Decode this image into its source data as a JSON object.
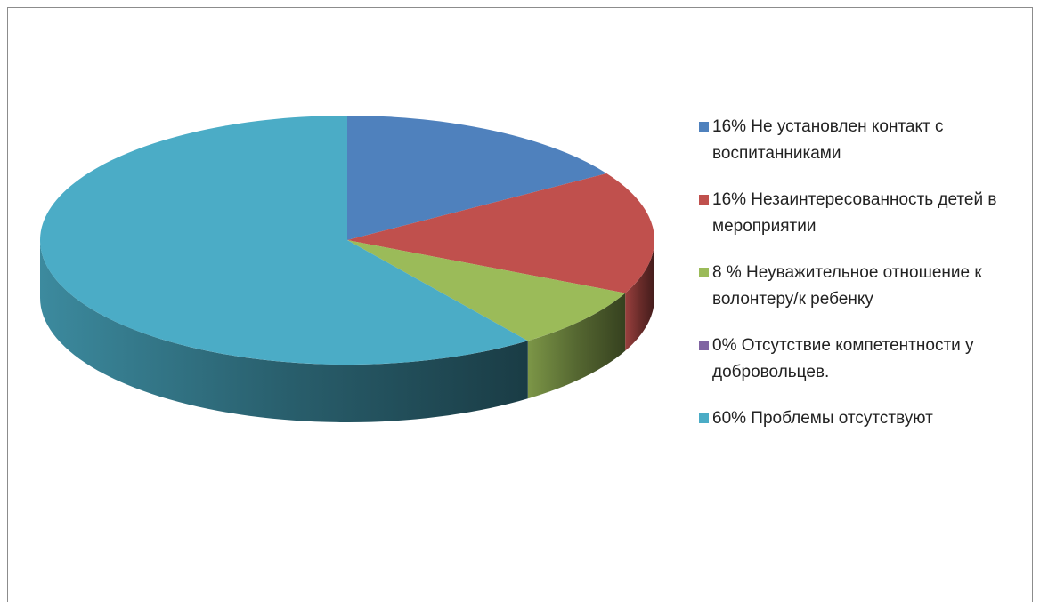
{
  "chart_data": {
    "type": "pie",
    "categories": [
      "16% Не установлен контакт с воспитанниками",
      "16% Незаинтересованность детей в мероприятии",
      "8 % Неуважительное отношение к волонтеру/к ребенку",
      "0% Отсутствие компетентности у добровольцев.",
      "60% Проблемы отсутствуют"
    ],
    "values": [
      16,
      16,
      8,
      0,
      60
    ],
    "colors": [
      "#4f81bd",
      "#c0504d",
      "#9bbb59",
      "#8064a2",
      "#4bacc6"
    ],
    "legend": "right"
  }
}
